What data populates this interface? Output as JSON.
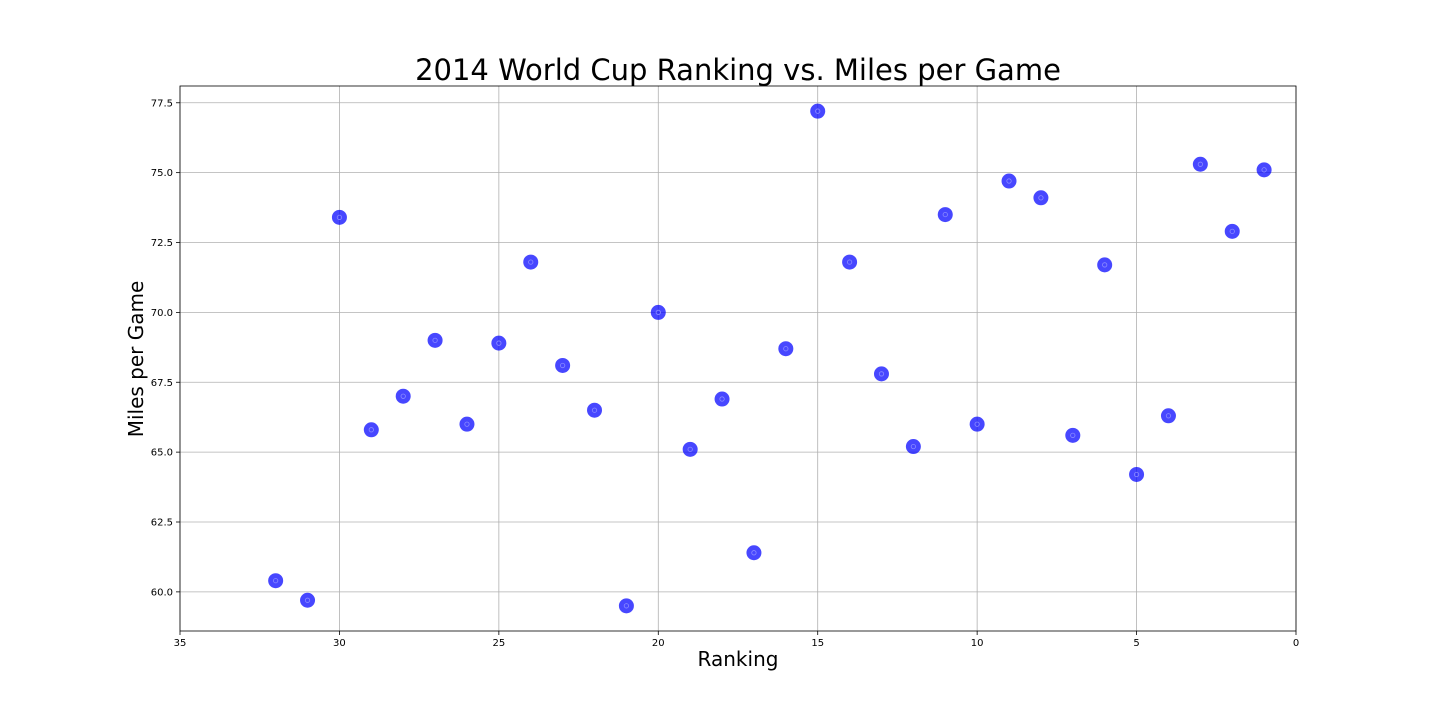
{
  "chart_data": {
    "type": "scatter",
    "title": "2014 World Cup Ranking vs. Miles per Game",
    "xlabel": "Ranking",
    "ylabel": "Miles per Game",
    "xlim": [
      35,
      0
    ],
    "ylim": [
      58.6,
      78.1
    ],
    "x_ticks": [
      35,
      30,
      25,
      20,
      15,
      10,
      5,
      0
    ],
    "y_ticks": [
      60.0,
      62.5,
      65.0,
      67.5,
      70.0,
      72.5,
      75.0,
      77.5
    ],
    "grid": true,
    "marker_color": "#0000ff",
    "series": [
      {
        "x": [
          32,
          31,
          30,
          29,
          28,
          27,
          26,
          25,
          24,
          23,
          22,
          21,
          20,
          19,
          18,
          17,
          16,
          15,
          14,
          13,
          12,
          11,
          10,
          9,
          8,
          7,
          6,
          5,
          4,
          3,
          2,
          1
        ],
        "y": [
          60.4,
          59.7,
          73.4,
          65.8,
          67.0,
          69.0,
          66.0,
          68.9,
          71.8,
          68.1,
          66.5,
          59.5,
          70.0,
          65.1,
          66.9,
          61.4,
          68.7,
          77.2,
          71.8,
          67.8,
          65.2,
          73.5,
          66.0,
          74.7,
          74.1,
          65.6,
          71.7,
          64.2,
          66.3,
          75.3,
          72.9,
          75.1
        ]
      }
    ]
  }
}
